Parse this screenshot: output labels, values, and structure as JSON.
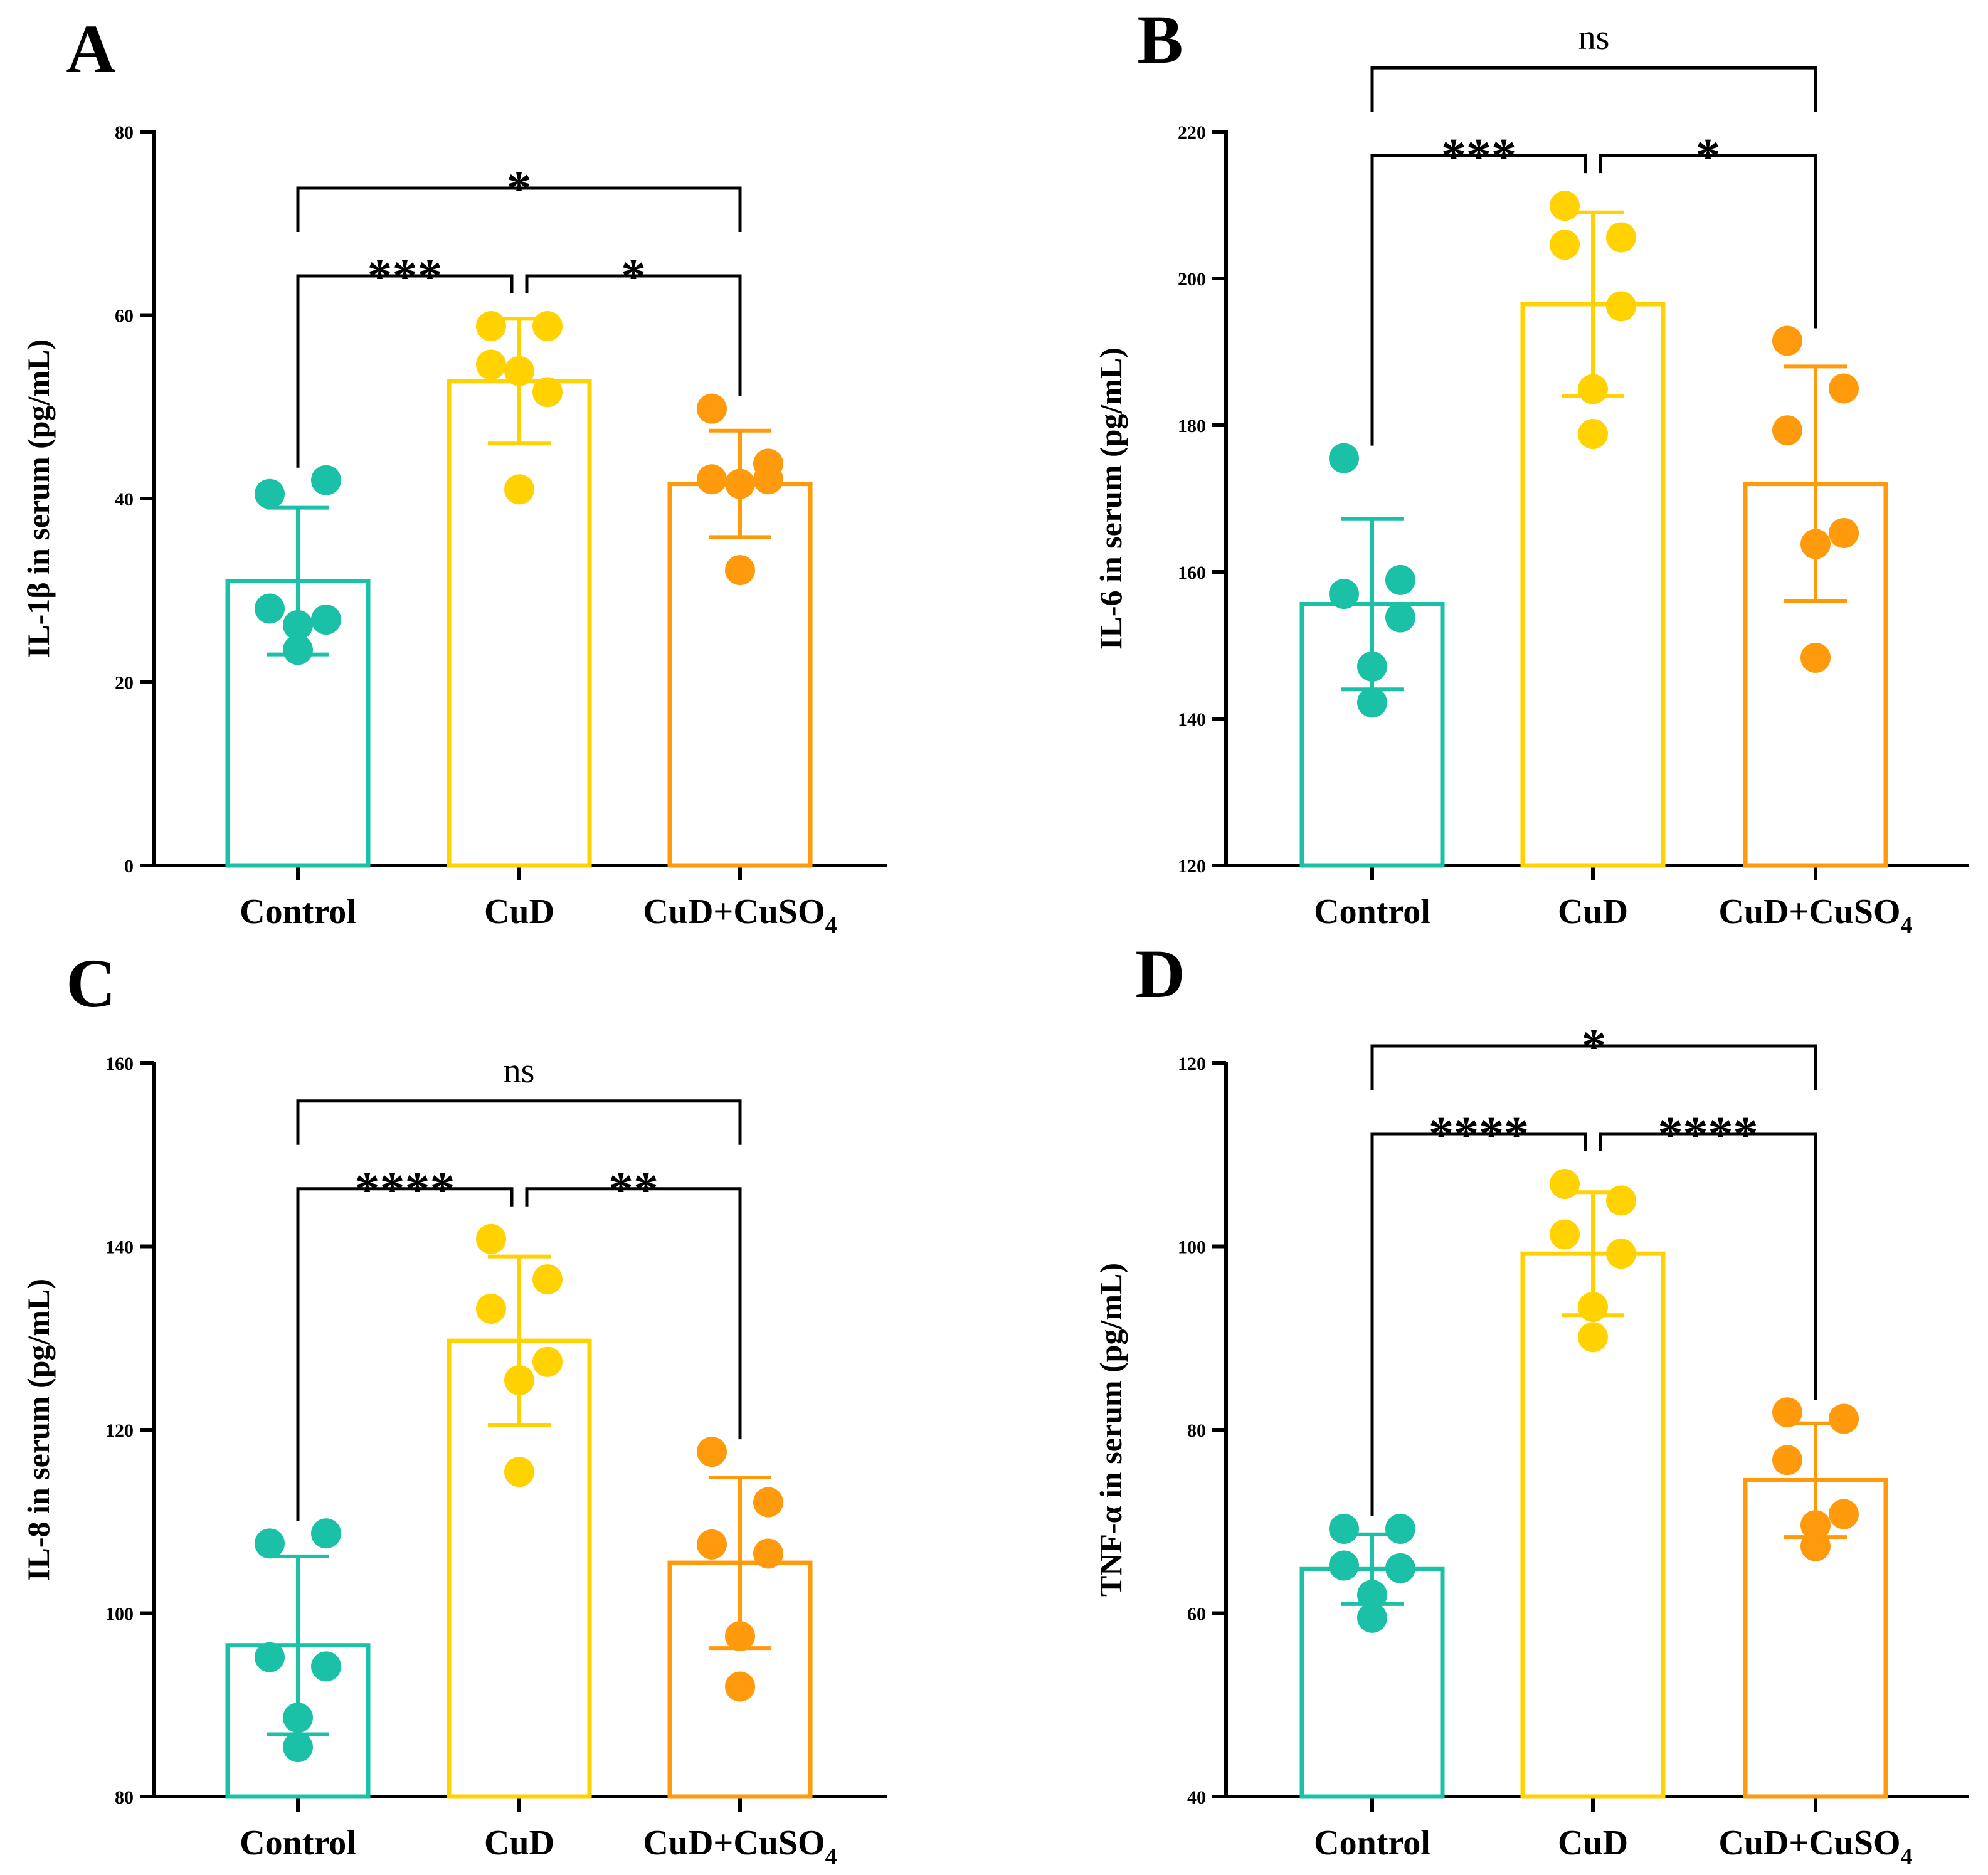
{
  "colors": {
    "control": "#1bc1a6",
    "cud": "#ffd200",
    "cud_cuso4": "#ff9a0c",
    "axis": "#000000"
  },
  "chart_data": [
    {
      "type": "bar",
      "panel": "A",
      "ylabel": "IL-1β in serum (pg/mL)",
      "ylim": [
        0,
        80
      ],
      "yticks": [
        0,
        20,
        40,
        60,
        80
      ],
      "categories": [
        {
          "label": "Control",
          "sub": ""
        },
        {
          "label": "CuD",
          "sub": ""
        },
        {
          "label": "CuD+CuSO",
          "sub": "4"
        }
      ],
      "means": [
        31.0,
        52.8,
        41.6
      ],
      "sd": [
        8.0,
        6.8,
        5.8
      ],
      "points": [
        [
          40.5,
          42.0,
          28.0,
          26.8,
          26.2,
          23.5
        ],
        [
          58.8,
          58.8,
          54.6,
          51.6,
          53.9,
          41.0
        ],
        [
          49.8,
          43.8,
          42.1,
          42.1,
          41.6,
          32.2
        ]
      ],
      "comparisons": [
        {
          "from": 0,
          "to": 1,
          "label": "***",
          "level": 1
        },
        {
          "from": 1,
          "to": 2,
          "label": "*",
          "level": 1
        },
        {
          "from": 0,
          "to": 2,
          "label": "*",
          "level": 2
        }
      ]
    },
    {
      "type": "bar",
      "panel": "B",
      "ylabel": "IL-6 in serum (pg/mL)",
      "ylim": [
        120,
        220
      ],
      "yticks": [
        120,
        140,
        160,
        180,
        200,
        220
      ],
      "categories": [
        {
          "label": "Control",
          "sub": ""
        },
        {
          "label": "CuD",
          "sub": ""
        },
        {
          "label": "CuD+CuSO",
          "sub": "4"
        }
      ],
      "means": [
        155.6,
        196.5,
        172.0
      ],
      "sd": [
        11.6,
        12.5,
        16.0
      ],
      "points": [
        [
          175.5,
          158.9,
          157.0,
          153.8,
          147.1,
          142.2
        ],
        [
          209.9,
          205.6,
          204.6,
          196.2,
          184.9,
          178.8
        ],
        [
          191.5,
          185.0,
          179.3,
          165.3,
          163.8,
          148.3
        ]
      ],
      "comparisons": [
        {
          "from": 0,
          "to": 1,
          "label": "***",
          "level": 1
        },
        {
          "from": 1,
          "to": 2,
          "label": "*",
          "level": 1
        },
        {
          "from": 0,
          "to": 2,
          "label": "ns",
          "level": 2
        }
      ]
    },
    {
      "type": "bar",
      "panel": "C",
      "ylabel": "IL-8 in serum (pg/mL)",
      "ylim": [
        80,
        160
      ],
      "yticks": [
        80,
        100,
        120,
        140,
        160
      ],
      "categories": [
        {
          "label": "Control",
          "sub": ""
        },
        {
          "label": "CuD",
          "sub": ""
        },
        {
          "label": "CuD+CuSO",
          "sub": "4"
        }
      ],
      "means": [
        96.5,
        129.7,
        105.5
      ],
      "sd": [
        9.7,
        9.2,
        9.3
      ],
      "points": [
        [
          107.6,
          108.7,
          95.2,
          94.2,
          88.6,
          85.4
        ],
        [
          140.8,
          136.4,
          133.2,
          127.4,
          125.4,
          115.4
        ],
        [
          117.6,
          112.1,
          107.5,
          106.5,
          97.5,
          92.0
        ]
      ],
      "comparisons": [
        {
          "from": 0,
          "to": 1,
          "label": "****",
          "level": 1
        },
        {
          "from": 1,
          "to": 2,
          "label": "**",
          "level": 1
        },
        {
          "from": 0,
          "to": 2,
          "label": "ns",
          "level": 2
        }
      ]
    },
    {
      "type": "bar",
      "panel": "D",
      "ylabel": "TNF-α in serum (pg/mL)",
      "ylim": [
        40,
        120
      ],
      "yticks": [
        40,
        60,
        80,
        100,
        120
      ],
      "categories": [
        {
          "label": "Control",
          "sub": ""
        },
        {
          "label": "CuD",
          "sub": ""
        },
        {
          "label": "CuD+CuSO",
          "sub": "4"
        }
      ],
      "means": [
        64.8,
        99.2,
        74.5
      ],
      "sd": [
        3.8,
        6.7,
        6.2
      ],
      "points": [
        [
          69.2,
          69.2,
          65.2,
          64.9,
          62.0,
          59.5
        ],
        [
          106.8,
          105.0,
          101.3,
          99.2,
          93.4,
          90.1
        ],
        [
          81.9,
          81.2,
          76.7,
          70.8,
          69.6,
          67.3
        ]
      ],
      "comparisons": [
        {
          "from": 0,
          "to": 1,
          "label": "****",
          "level": 1
        },
        {
          "from": 1,
          "to": 2,
          "label": "****",
          "level": 1
        },
        {
          "from": 0,
          "to": 2,
          "label": "*",
          "level": 2
        }
      ]
    }
  ]
}
